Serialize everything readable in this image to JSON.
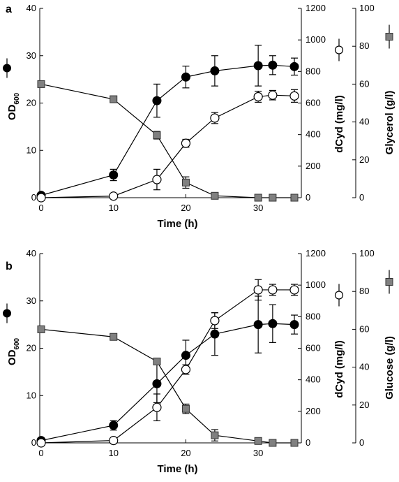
{
  "chart_data": [
    {
      "panel_label": "a",
      "type": "line",
      "xlabel": "Time (h)",
      "xlim": [
        0,
        35
      ],
      "xticks": [
        0,
        10,
        20,
        30
      ],
      "axes": {
        "left": {
          "label_main": "OD",
          "label_sub": "600",
          "ylim": [
            0,
            40
          ],
          "ticks": [
            0,
            10,
            20,
            30,
            40
          ]
        },
        "right1": {
          "label": "dCyd (mg/l)",
          "ylim": [
            0,
            1200
          ],
          "ticks": [
            0,
            200,
            400,
            600,
            800,
            1000,
            1200
          ]
        },
        "right2": {
          "label": "Glycerol (g/l)",
          "ylim": [
            0,
            100
          ],
          "ticks": [
            0,
            20,
            40,
            60,
            80,
            100
          ]
        }
      },
      "series": [
        {
          "key": "od",
          "axis": "left",
          "marker": "filled-circle",
          "color": "#000000",
          "x": [
            0,
            10,
            16,
            20,
            24,
            30,
            32,
            35
          ],
          "y": [
            0.5,
            4.8,
            20.5,
            25.5,
            26.8,
            27.9,
            28.0,
            27.7
          ],
          "err": [
            0.3,
            1.2,
            3.5,
            2.3,
            3.2,
            4.3,
            2.0,
            1.8
          ]
        },
        {
          "key": "dcyd",
          "axis": "right1",
          "marker": "open-circle",
          "color": "#000000",
          "x": [
            0,
            10,
            16,
            20,
            24,
            30,
            32,
            35
          ],
          "y": [
            0,
            10,
            115,
            345,
            505,
            640,
            650,
            645
          ],
          "err": [
            0,
            5,
            65,
            25,
            35,
            35,
            30,
            40
          ]
        },
        {
          "key": "glycerol",
          "axis": "right2",
          "marker": "square",
          "color": "#808080",
          "x": [
            0,
            10,
            16,
            20,
            24,
            30,
            32,
            35
          ],
          "y": [
            60,
            52,
            33,
            8,
            1,
            0,
            0,
            0
          ],
          "err": [
            0,
            0,
            2,
            3,
            0,
            0,
            0,
            0
          ]
        }
      ]
    },
    {
      "panel_label": "b",
      "type": "line",
      "xlabel": "Time (h)",
      "xlim": [
        0,
        35
      ],
      "xticks": [
        0,
        10,
        20,
        30
      ],
      "axes": {
        "left": {
          "label_main": "OD",
          "label_sub": "600",
          "ylim": [
            0,
            40
          ],
          "ticks": [
            0,
            10,
            20,
            30,
            40
          ]
        },
        "right1": {
          "label": "dCyd (mg/l)",
          "ylim": [
            0,
            1200
          ],
          "ticks": [
            0,
            200,
            400,
            600,
            800,
            1000,
            1200
          ]
        },
        "right2": {
          "label": "Glucose (g/l)",
          "ylim": [
            0,
            100
          ],
          "ticks": [
            0,
            20,
            40,
            60,
            80,
            100
          ]
        }
      },
      "series": [
        {
          "key": "od",
          "axis": "left",
          "marker": "filled-circle",
          "color": "#000000",
          "x": [
            0,
            10,
            16,
            20,
            24,
            30,
            32,
            35
          ],
          "y": [
            0.5,
            3.7,
            12.5,
            18.5,
            23.0,
            25.0,
            25.2,
            25.0
          ],
          "err": [
            0.3,
            1.0,
            4.0,
            3.2,
            4.5,
            6.0,
            4.0,
            2.0
          ]
        },
        {
          "key": "dcyd",
          "axis": "right1",
          "marker": "open-circle",
          "color": "#000000",
          "x": [
            0,
            10,
            16,
            20,
            24,
            30,
            32,
            35
          ],
          "y": [
            0,
            15,
            225,
            465,
            775,
            970,
            970,
            970
          ],
          "err": [
            0,
            10,
            85,
            30,
            50,
            65,
            35,
            35
          ]
        },
        {
          "key": "glucose",
          "axis": "right2",
          "marker": "square",
          "color": "#808080",
          "x": [
            0,
            10,
            16,
            20,
            24,
            30,
            32,
            35
          ],
          "y": [
            60,
            56,
            43,
            18,
            4,
            1,
            0,
            0
          ],
          "err": [
            0,
            0,
            1.5,
            2.5,
            3,
            0,
            0,
            0
          ]
        }
      ]
    }
  ]
}
